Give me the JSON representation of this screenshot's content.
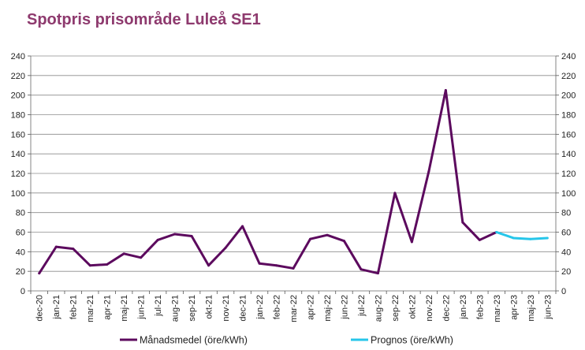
{
  "title": "Spotpris prisområde Luleå SE1",
  "chart_data": {
    "type": "line",
    "categories": [
      "dec-20",
      "jan-21",
      "feb-21",
      "mar-21",
      "apr-21",
      "maj-21",
      "jun-21",
      "jul-21",
      "aug-21",
      "sep-21",
      "okt-21",
      "nov-21",
      "dec-21",
      "jan-22",
      "feb-22",
      "mar-22",
      "apr-22",
      "maj-22",
      "jun-22",
      "jul-22",
      "aug-22",
      "sep-22",
      "okt-22",
      "nov-22",
      "dec-22",
      "jan-23",
      "feb-23",
      "mar-23",
      "apr-23",
      "maj-23",
      "jun-23"
    ],
    "series": [
      {
        "name": "Månadsmedel (öre/kWh)",
        "color": "#5c0a5e",
        "values": [
          18,
          45,
          43,
          26,
          27,
          38,
          34,
          52,
          58,
          56,
          26,
          44,
          66,
          28,
          26,
          23,
          53,
          57,
          51,
          22,
          18,
          100,
          50,
          122,
          205,
          70,
          52,
          60,
          null,
          null,
          null
        ]
      },
      {
        "name": "Prognos (öre/kWh)",
        "color": "#26c6ea",
        "values": [
          null,
          null,
          null,
          null,
          null,
          null,
          null,
          null,
          null,
          null,
          null,
          null,
          null,
          null,
          null,
          null,
          null,
          null,
          null,
          null,
          null,
          null,
          null,
          null,
          null,
          null,
          null,
          60,
          54,
          53,
          54
        ]
      }
    ],
    "y_ticks": [
      "0",
      "20",
      "40",
      "60",
      "80",
      "100",
      "120",
      "140",
      "160",
      "180",
      "200",
      "220",
      "240"
    ],
    "ylim": [
      0,
      240
    ],
    "grid": true,
    "legend": "bottom",
    "xlabel": "",
    "ylabel": ""
  }
}
